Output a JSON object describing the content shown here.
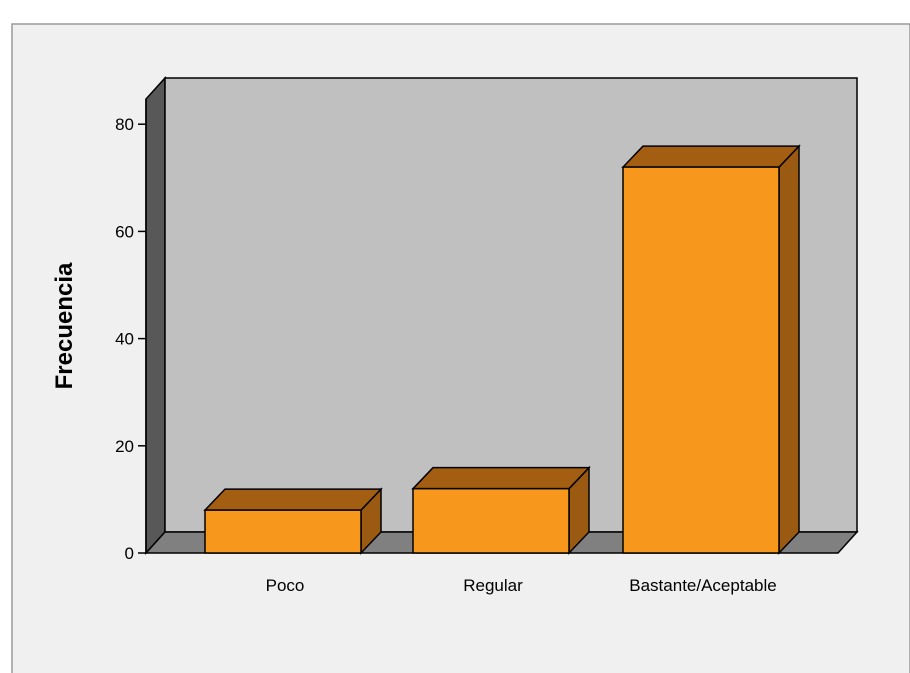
{
  "chart_data": {
    "type": "bar",
    "title": "",
    "xlabel": "",
    "ylabel": "Frecuencia",
    "categories": [
      "Poco",
      "Regular",
      "Bastante/Aceptable"
    ],
    "values": [
      8,
      12,
      72
    ],
    "ylim": [
      0,
      85
    ],
    "yticks": [
      0,
      20,
      40,
      60,
      80
    ],
    "ytick_labels": [
      "0",
      "20",
      "40",
      "60",
      "80"
    ],
    "grid": false,
    "legend": "none",
    "style": "3d",
    "colors": {
      "bar_front": "#f7981d",
      "bar_top": "#a35e12",
      "bar_side": "#9b5a12",
      "plot_back_wall": "#c0c0c0",
      "plot_side_wall": "#585858",
      "plot_floor": "#808080",
      "outer_background": "#f0f0f0"
    }
  }
}
